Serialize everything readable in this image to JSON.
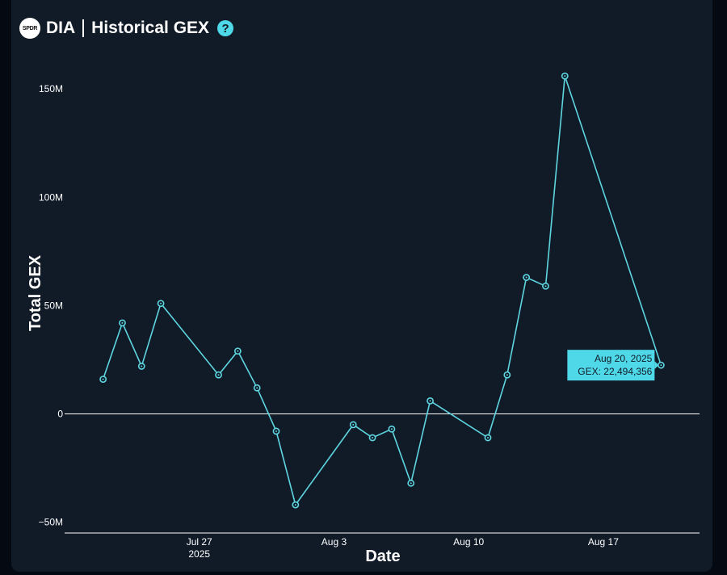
{
  "header": {
    "logo_text": "SPDR",
    "ticker": "DIA",
    "title": "Historical GEX",
    "help_symbol": "?"
  },
  "colors": {
    "background": "#111b28",
    "line": "#5ed6e0",
    "marker": "#5ed6e0",
    "axis_text": "#ffffff",
    "tooltip_bg": "#4fd8e8"
  },
  "chart_data": {
    "type": "line",
    "xlabel": "Date",
    "ylabel": "Total GEX",
    "x_tick_labels": [
      {
        "date": "2025-07-27",
        "label": "Jul 27",
        "sublabel": "2025"
      },
      {
        "date": "2025-08-03",
        "label": "Aug 3",
        "sublabel": ""
      },
      {
        "date": "2025-08-10",
        "label": "Aug 10",
        "sublabel": ""
      },
      {
        "date": "2025-08-17",
        "label": "Aug 17",
        "sublabel": ""
      }
    ],
    "y_tick_labels": [
      {
        "value": 150000000,
        "label": "150M"
      },
      {
        "value": 100000000,
        "label": "100M"
      },
      {
        "value": 50000000,
        "label": "50M"
      },
      {
        "value": 0,
        "label": "0"
      },
      {
        "value": -50000000,
        "label": "−50M"
      }
    ],
    "xlim": [
      "2025-07-20",
      "2025-08-22"
    ],
    "ylim": [
      -55000000,
      165000000
    ],
    "grid": false,
    "zero_line": true,
    "series": [
      {
        "points": [
          {
            "x": "2025-07-22",
            "y": 16000000
          },
          {
            "x": "2025-07-23",
            "y": 42000000
          },
          {
            "x": "2025-07-24",
            "y": 22000000
          },
          {
            "x": "2025-07-25",
            "y": 51000000
          },
          {
            "x": "2025-07-28",
            "y": 18000000
          },
          {
            "x": "2025-07-29",
            "y": 29000000
          },
          {
            "x": "2025-07-30",
            "y": 12000000
          },
          {
            "x": "2025-07-31",
            "y": -8000000
          },
          {
            "x": "2025-08-01",
            "y": -42000000
          },
          {
            "x": "2025-08-04",
            "y": -5000000
          },
          {
            "x": "2025-08-05",
            "y": -11000000
          },
          {
            "x": "2025-08-06",
            "y": -7000000
          },
          {
            "x": "2025-08-07",
            "y": -32000000
          },
          {
            "x": "2025-08-08",
            "y": 6000000
          },
          {
            "x": "2025-08-11",
            "y": -11000000
          },
          {
            "x": "2025-08-12",
            "y": 18000000
          },
          {
            "x": "2025-08-13",
            "y": 63000000
          },
          {
            "x": "2025-08-14",
            "y": 59000000
          },
          {
            "x": "2025-08-15",
            "y": 156000000
          },
          {
            "x": "2025-08-20",
            "y": 22494356
          }
        ]
      }
    ],
    "tooltip": {
      "date_label": "Aug 20, 2025",
      "value_label": "GEX: 22,494,356"
    }
  }
}
